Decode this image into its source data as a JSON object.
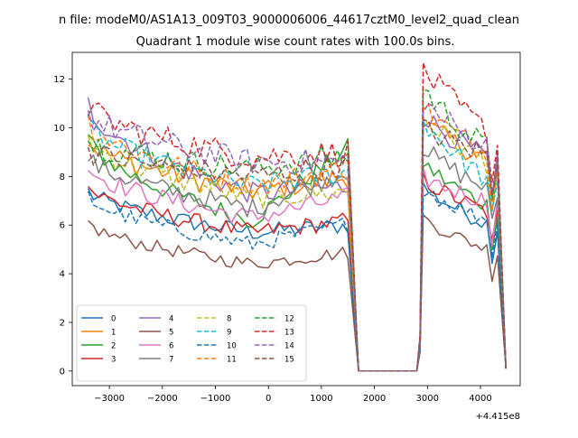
{
  "suptitle": "n file: modeM0/AS1A13_009T03_9000006006_44617cztM0_level2_quad_clean",
  "chart_data": {
    "type": "line",
    "title": "Quadrant 1 module wise count rates with 100.0s bins.",
    "xlabel": "",
    "ylabel": "",
    "x_offset_label": "+4.415e8",
    "xlim": [
      -3700,
      4750
    ],
    "ylim": [
      -0.6,
      13.1
    ],
    "xticks": [
      -3000,
      -2000,
      -1000,
      0,
      1000,
      2000,
      3000,
      4000
    ],
    "xtick_labels": [
      "−3000",
      "−2000",
      "−1000",
      "0",
      "1000",
      "2000",
      "3000",
      "4000"
    ],
    "yticks": [
      0,
      2,
      4,
      6,
      8,
      10,
      12
    ],
    "ytick_labels": [
      "0",
      "2",
      "4",
      "6",
      "8",
      "10",
      "12"
    ],
    "legend": {
      "location": "lower-left",
      "columns": 4
    },
    "gaps": [
      {
        "drop_start": 1580,
        "zero_start": 1700,
        "zero_end": 2800,
        "rise_end": 2920
      },
      {
        "drop_start": 4400,
        "zero_start": 4480,
        "zero_end": 4480,
        "rise_end": 4480
      }
    ],
    "segment_1": {
      "x_start": -3400,
      "x_end": 1580
    },
    "segment_2": {
      "x_start": 2920,
      "x_end": 4400
    },
    "series": [
      {
        "name": "0",
        "color": "#1f77b4",
        "dashed": false,
        "start": 7.4,
        "mid": 5.7,
        "pre_gap": 6.0,
        "peak": 7.6,
        "post_end": 5.8,
        "final": 0.1
      },
      {
        "name": "1",
        "color": "#ff7f0e",
        "dashed": false,
        "start": 9.5,
        "mid": 7.4,
        "pre_gap": 8.0,
        "peak": 10.2,
        "post_end": 8.5,
        "final": 0.1
      },
      {
        "name": "2",
        "color": "#2ca02c",
        "dashed": false,
        "start": 9.6,
        "mid": 6.2,
        "pre_gap": 9.3,
        "peak": 8.6,
        "post_end": 6.5,
        "final": 0.1
      },
      {
        "name": "3",
        "color": "#d62728",
        "dashed": false,
        "start": 7.6,
        "mid": 5.7,
        "pre_gap": 6.2,
        "peak": 7.9,
        "post_end": 6.3,
        "final": 0.1
      },
      {
        "name": "4",
        "color": "#9467bd",
        "dashed": false,
        "start": 11.0,
        "mid": 7.3,
        "pre_gap": 7.6,
        "peak": 10.6,
        "post_end": 8.4,
        "final": 0.1
      },
      {
        "name": "5",
        "color": "#8c564b",
        "dashed": false,
        "start": 6.1,
        "mid": 4.4,
        "pre_gap": 4.9,
        "peak": 6.3,
        "post_end": 4.8,
        "final": 0.1
      },
      {
        "name": "6",
        "color": "#e377c2",
        "dashed": false,
        "start": 8.4,
        "mid": 6.3,
        "pre_gap": 7.2,
        "peak": 8.0,
        "post_end": 6.8,
        "final": 0.1
      },
      {
        "name": "7",
        "color": "#7f7f7f",
        "dashed": false,
        "start": 8.8,
        "mid": 6.7,
        "pre_gap": 8.3,
        "peak": 9.2,
        "post_end": 7.2,
        "final": 0.1
      },
      {
        "name": "8",
        "color": "#bcbd22",
        "dashed": true,
        "start": 9.6,
        "mid": 7.1,
        "pre_gap": 7.4,
        "peak": 10.5,
        "post_end": 8.2,
        "final": 0.1
      },
      {
        "name": "9",
        "color": "#17becf",
        "dashed": true,
        "start": 10.1,
        "mid": 7.6,
        "pre_gap": 8.2,
        "peak": 10.4,
        "post_end": 7.4,
        "final": 0.1
      },
      {
        "name": "10",
        "color": "#1f77b4",
        "dashed": true,
        "start": 7.2,
        "mid": 5.2,
        "pre_gap": 6.1,
        "peak": 7.5,
        "post_end": 6.0,
        "final": 0.1
      },
      {
        "name": "11",
        "color": "#ff7f0e",
        "dashed": true,
        "start": 10.3,
        "mid": 7.6,
        "pre_gap": 8.4,
        "peak": 10.9,
        "post_end": 8.6,
        "final": 0.1
      },
      {
        "name": "12",
        "color": "#2ca02c",
        "dashed": true,
        "start": 9.5,
        "mid": 8.3,
        "pre_gap": 8.9,
        "peak": 11.7,
        "post_end": 8.7,
        "final": 0.1
      },
      {
        "name": "13",
        "color": "#d62728",
        "dashed": true,
        "start": 10.9,
        "mid": 8.8,
        "pre_gap": 9.0,
        "peak": 12.5,
        "post_end": 9.4,
        "final": 0.1
      },
      {
        "name": "14",
        "color": "#9467bd",
        "dashed": true,
        "start": 10.6,
        "mid": 8.6,
        "pre_gap": 8.6,
        "peak": 11.1,
        "post_end": 8.9,
        "final": 0.1
      },
      {
        "name": "15",
        "color": "#8c564b",
        "dashed": true,
        "start": 9.1,
        "mid": 8.0,
        "pre_gap": 8.5,
        "peak": 10.0,
        "post_end": 8.7,
        "final": 0.1
      }
    ]
  }
}
